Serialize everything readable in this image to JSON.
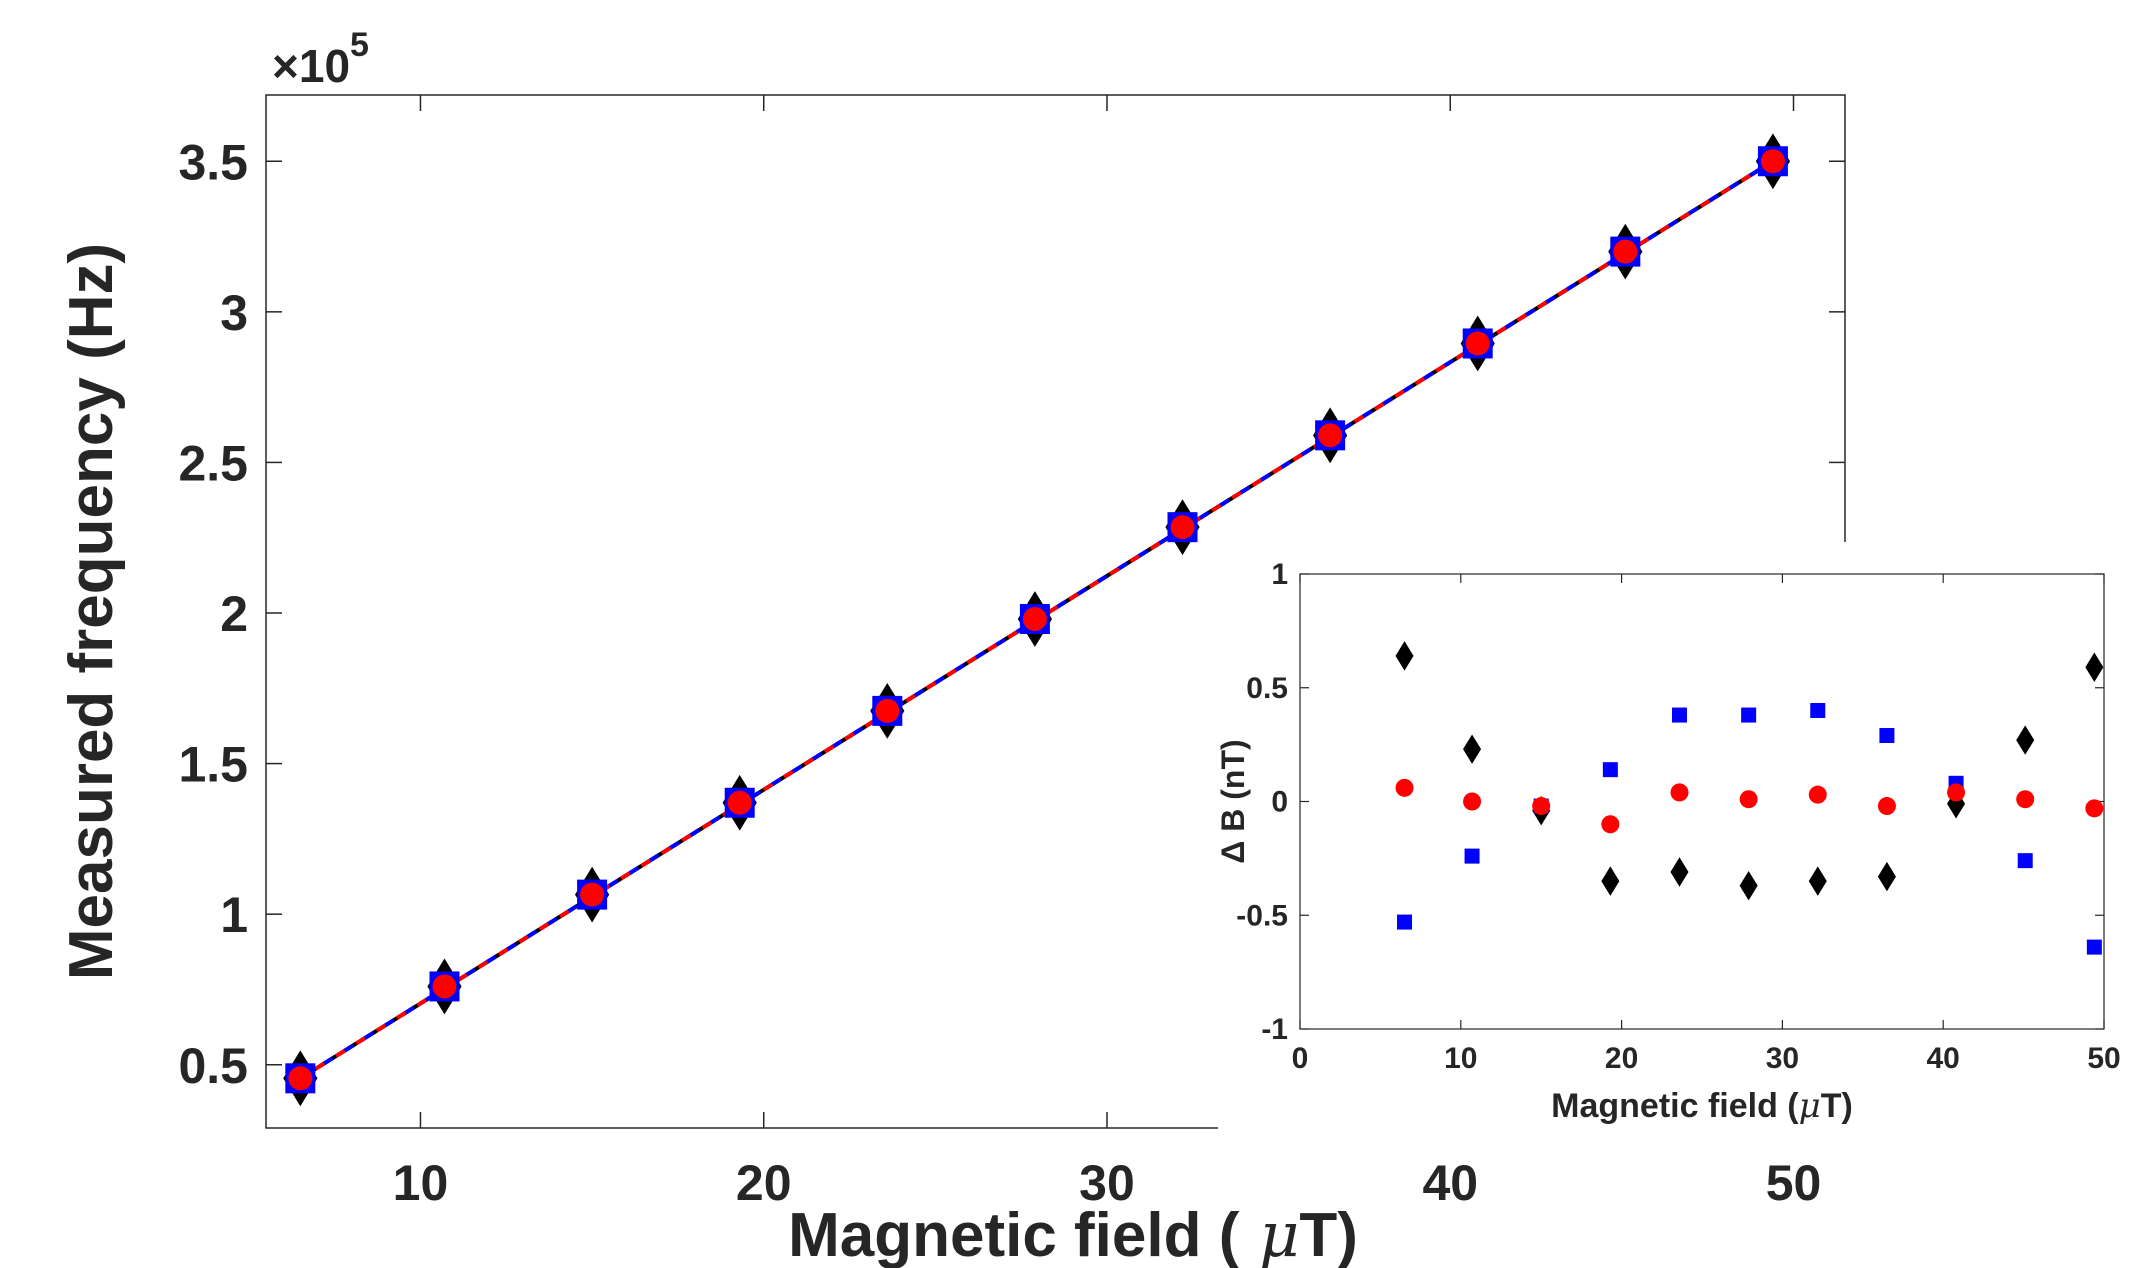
{
  "chart_data": [
    {
      "type": "line",
      "role": "main",
      "xlabel": "Magnetic field (",
      "xlabel_mu": "μ",
      "xlabel_end": "T)",
      "ylabel": "Measured frequency (Hz)",
      "y_exponent_label": "×10",
      "y_exponent_power": "5",
      "xlim": [
        5.5,
        51.5
      ],
      "ylim": [
        0.29,
        3.72
      ],
      "xticks": [
        10,
        20,
        30,
        40,
        50
      ],
      "xtick_labels": [
        "10",
        "20",
        "30",
        "40",
        "50"
      ],
      "yticks": [
        0.5,
        1,
        1.5,
        2,
        2.5,
        3,
        3.5
      ],
      "ytick_labels": [
        "0.5",
        "1",
        "1.5",
        "2",
        "2.5",
        "3",
        "3.5"
      ],
      "x": [
        6.5,
        10.7,
        15.0,
        19.3,
        23.6,
        27.9,
        32.2,
        36.5,
        40.8,
        45.1,
        49.4
      ],
      "series": [
        {
          "name": "black diamonds",
          "marker": "diamond",
          "color": "#000000",
          "values": [
            0.455,
            0.76,
            1.065,
            1.37,
            1.675,
            1.98,
            2.285,
            2.59,
            2.895,
            3.2,
            3.5
          ]
        },
        {
          "name": "blue squares",
          "marker": "square",
          "color": "#0000ff",
          "values": [
            0.455,
            0.76,
            1.065,
            1.37,
            1.675,
            1.98,
            2.285,
            2.59,
            2.895,
            3.2,
            3.5
          ]
        },
        {
          "name": "red circles",
          "marker": "circle",
          "color": "#ff0000",
          "values": [
            0.455,
            0.76,
            1.065,
            1.37,
            1.675,
            1.98,
            2.285,
            2.59,
            2.895,
            3.2,
            3.5
          ]
        }
      ],
      "fit_line": {
        "x": [
          6.5,
          49.4
        ],
        "y": [
          0.455,
          3.5
        ],
        "colors": [
          "#000000",
          "#0000ff",
          "#ff0000"
        ]
      }
    },
    {
      "type": "scatter",
      "role": "inset",
      "xlabel": "Magnetic field (",
      "xlabel_mu": "μ",
      "xlabel_end": "T)",
      "ylabel": "Δ B (nT)",
      "xlim": [
        0,
        50
      ],
      "ylim": [
        -1,
        1
      ],
      "xticks": [
        0,
        10,
        20,
        30,
        40,
        50
      ],
      "xtick_labels": [
        "0",
        "10",
        "20",
        "30",
        "40",
        "50"
      ],
      "yticks": [
        -1,
        -0.5,
        0,
        0.5,
        1
      ],
      "ytick_labels": [
        "-1",
        "-0.5",
        "0",
        "0.5",
        "1"
      ],
      "x": [
        6.5,
        10.7,
        15.0,
        19.3,
        23.6,
        27.9,
        32.2,
        36.5,
        40.8,
        45.1,
        49.4
      ],
      "series": [
        {
          "name": "black diamonds",
          "marker": "diamond",
          "color": "#000000",
          "values": [
            0.64,
            0.23,
            -0.04,
            -0.35,
            -0.31,
            -0.37,
            -0.35,
            -0.33,
            -0.01,
            0.27,
            0.59
          ]
        },
        {
          "name": "blue squares",
          "marker": "square",
          "color": "#0000ff",
          "values": [
            -0.53,
            -0.24,
            -0.02,
            0.14,
            0.38,
            0.38,
            0.4,
            0.29,
            0.08,
            -0.26,
            -0.64
          ]
        },
        {
          "name": "red circles",
          "marker": "circle",
          "color": "#ff0000",
          "values": [
            0.06,
            0.0,
            -0.02,
            -0.1,
            0.04,
            0.01,
            0.03,
            -0.02,
            0.04,
            0.01,
            -0.03
          ]
        }
      ]
    }
  ]
}
